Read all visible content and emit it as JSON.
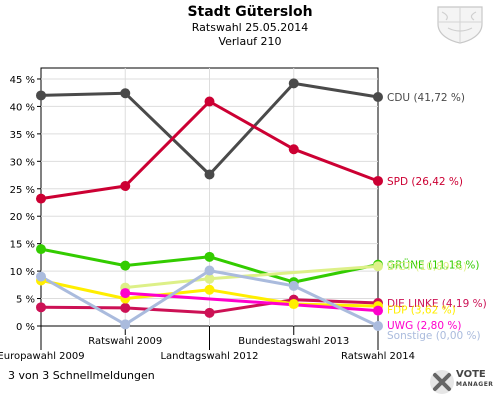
{
  "header": {
    "title": "Stadt Gütersloh",
    "subtitle": "Ratswahl 25.05.2014",
    "subtitle2": "Verlauf 210"
  },
  "footer": {
    "note": "3 von 3 Schnellmeldungen",
    "brand": "VOTE",
    "brand_sub": "MANAGER"
  },
  "chart_data": {
    "type": "line",
    "categories": [
      "Europawahl 2009",
      "Ratswahl 2009",
      "Landtagswahl 2012",
      "Bundestagswahl 2013",
      "Ratswahl 2014"
    ],
    "ylim": [
      0,
      47
    ],
    "yticks": [
      "0 %",
      "5 %",
      "10 %",
      "15 %",
      "20 %",
      "25 %",
      "30 %",
      "35 %",
      "40 %",
      "45 %"
    ],
    "ytick_values": [
      0,
      5,
      10,
      15,
      20,
      25,
      30,
      35,
      40,
      45
    ],
    "grid": true,
    "series": [
      {
        "name": "CDU",
        "label": "CDU (41,72 %)",
        "color": "#4a4a4a",
        "values": [
          42.0,
          42.4,
          27.6,
          44.2,
          41.72
        ]
      },
      {
        "name": "SPD",
        "label": "SPD (26,42 %)",
        "color": "#cc0033",
        "values": [
          23.2,
          25.5,
          40.9,
          32.2,
          26.42
        ]
      },
      {
        "name": "GRÜNE",
        "label": "GRÜNE (11,18 %)",
        "color": "#33cc00",
        "values": [
          14.0,
          11.0,
          12.6,
          8.0,
          11.18
        ]
      },
      {
        "name": "BfGT",
        "label": "BfGT (10,89 %)",
        "color": "#ddf088",
        "values": [
          null,
          7.0,
          8.6,
          null,
          10.89
        ]
      },
      {
        "name": "DIE LINKE",
        "label": "DIE LINKE (4,19 %)",
        "color": "#cc1155",
        "values": [
          3.4,
          3.3,
          2.4,
          4.8,
          4.19
        ]
      },
      {
        "name": "FDP",
        "label": "FDP (3,62 %)",
        "color": "#ffee00",
        "values": [
          8.3,
          5.0,
          6.6,
          4.0,
          3.62
        ]
      },
      {
        "name": "UWG",
        "label": "UWG (2,80 %)",
        "color": "#ff00cc",
        "values": [
          null,
          6.0,
          null,
          null,
          2.8
        ]
      },
      {
        "name": "Sonstige",
        "label": "Sonstige (0,00 %)",
        "color": "#aabbdd",
        "values": [
          9.0,
          0.3,
          10.1,
          7.3,
          0.0
        ]
      }
    ],
    "label_y": [
      41.72,
      26.42,
      11.18,
      10.89,
      4.19,
      3.0,
      0.2,
      -1.6
    ]
  }
}
